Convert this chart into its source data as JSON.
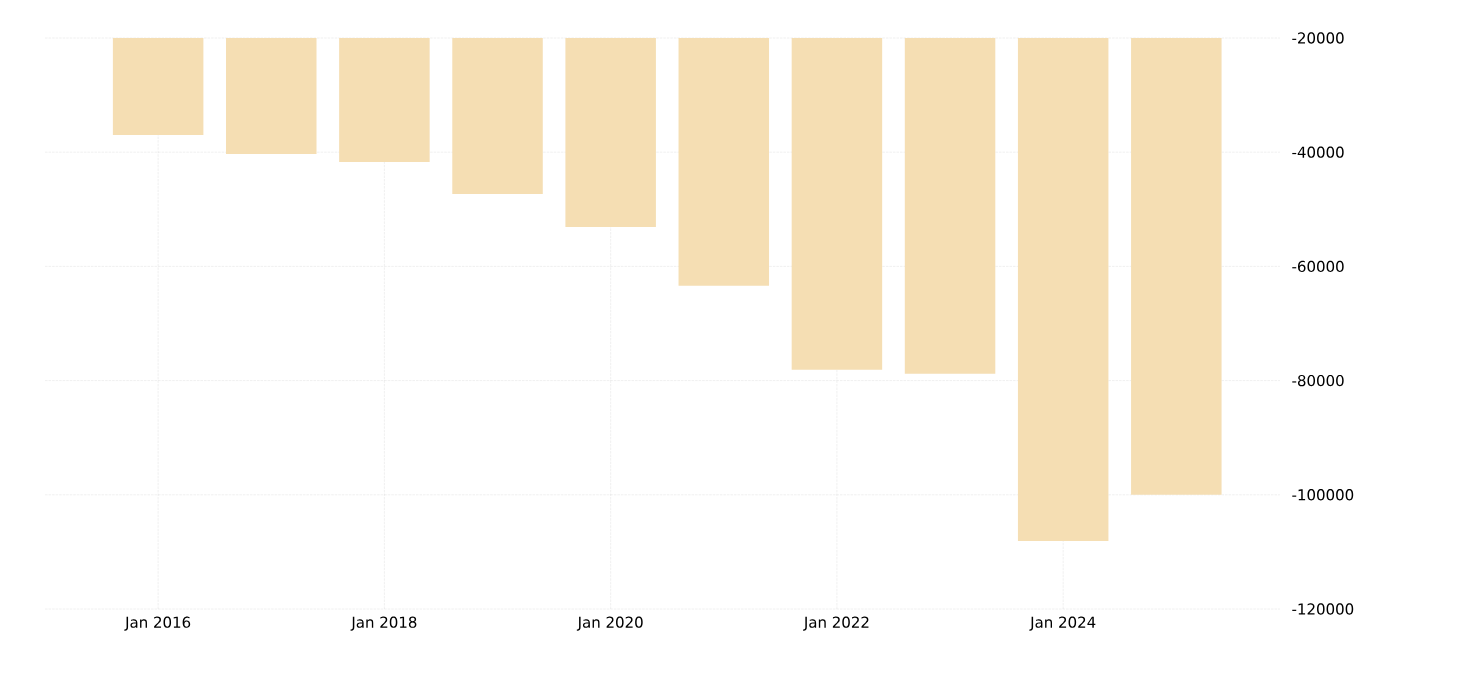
{
  "chart_data": {
    "type": "bar",
    "x": [
      "2016-01",
      "2017-01",
      "2018-01",
      "2019-01",
      "2020-01",
      "2021-01",
      "2022-01",
      "2023-01",
      "2024-01",
      "2025-01"
    ],
    "values": [
      -37000,
      -40300,
      -41700,
      -47300,
      -53100,
      -63400,
      -78100,
      -78800,
      -108100,
      -100000
    ],
    "color": "#f5deb3",
    "xlim": [
      "2015-01",
      "2025-12"
    ],
    "xticks": [
      {
        "value": "2016-01",
        "label": "Jan 2016"
      },
      {
        "value": "2018-01",
        "label": "Jan 2018"
      },
      {
        "value": "2020-01",
        "label": "Jan 2020"
      },
      {
        "value": "2022-01",
        "label": "Jan 2022"
      },
      {
        "value": "2024-01",
        "label": "Jan 2024"
      }
    ],
    "ylim": [
      -120000,
      -20000
    ],
    "yticks": [
      -120000,
      -100000,
      -80000,
      -60000,
      -40000,
      -20000
    ],
    "grid": true
  }
}
